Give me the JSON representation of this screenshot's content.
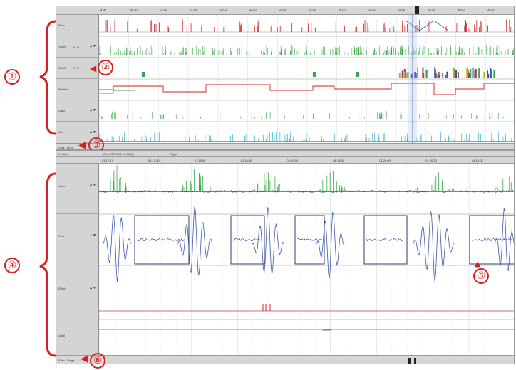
{
  "overview": {
    "ticks": [
      "0:00",
      "00:30",
      "01:00",
      "01:30",
      "02:00",
      "02:30",
      "03:00",
      "03:30",
      "04:00",
      "04:30",
      "05:00",
      "05:30",
      "06:00",
      "06:30"
    ],
    "channels": [
      {
        "name": "Flow",
        "value": "",
        "scale": ""
      },
      {
        "name": "Snore",
        "value": "27.8",
        "scale": "▲▼"
      },
      {
        "name": "SpO2",
        "value": "77.8",
        "scale": ""
      },
      {
        "name": "Position",
        "value": "",
        "scale": ""
      },
      {
        "name": "Light",
        "value": "",
        "scale": "▲▼"
      },
      {
        "name": "Act",
        "value": "",
        "scale": "▲▼"
      }
    ],
    "footer_label": "Flow Trend"
  },
  "position_bar": {
    "label": "Position",
    "value": "22.04.2021 01:17:18 (R)",
    "extra": "Right"
  },
  "detail": {
    "ticks": [
      "01:17:17",
      "01:17:30",
      "01:18:00",
      "01:18:30",
      "01:19:00",
      "01:19:30",
      "01:20:00",
      "01:20:30",
      "01:21:00"
    ],
    "channels": [
      {
        "name": "Snore",
        "scale": "▲▼"
      },
      {
        "name": "Flow",
        "scale": "▲▼"
      },
      {
        "name": "Effort",
        "scale": "▲▼"
      },
      {
        "name": "Light",
        "scale": ""
      }
    ],
    "center_label": "Supine",
    "footer_label": "Flow - Stage"
  },
  "annotations": {
    "n1": "①",
    "n2": "②",
    "n3": "③",
    "n4": "④",
    "n5": "⑤",
    "n6": "⑥"
  },
  "colors": {
    "red": "#d62020",
    "flow": "#3c5aa8",
    "snore": "#3aa64a",
    "spo2": "#b21c1c",
    "cyan": "#1aa3c7"
  }
}
